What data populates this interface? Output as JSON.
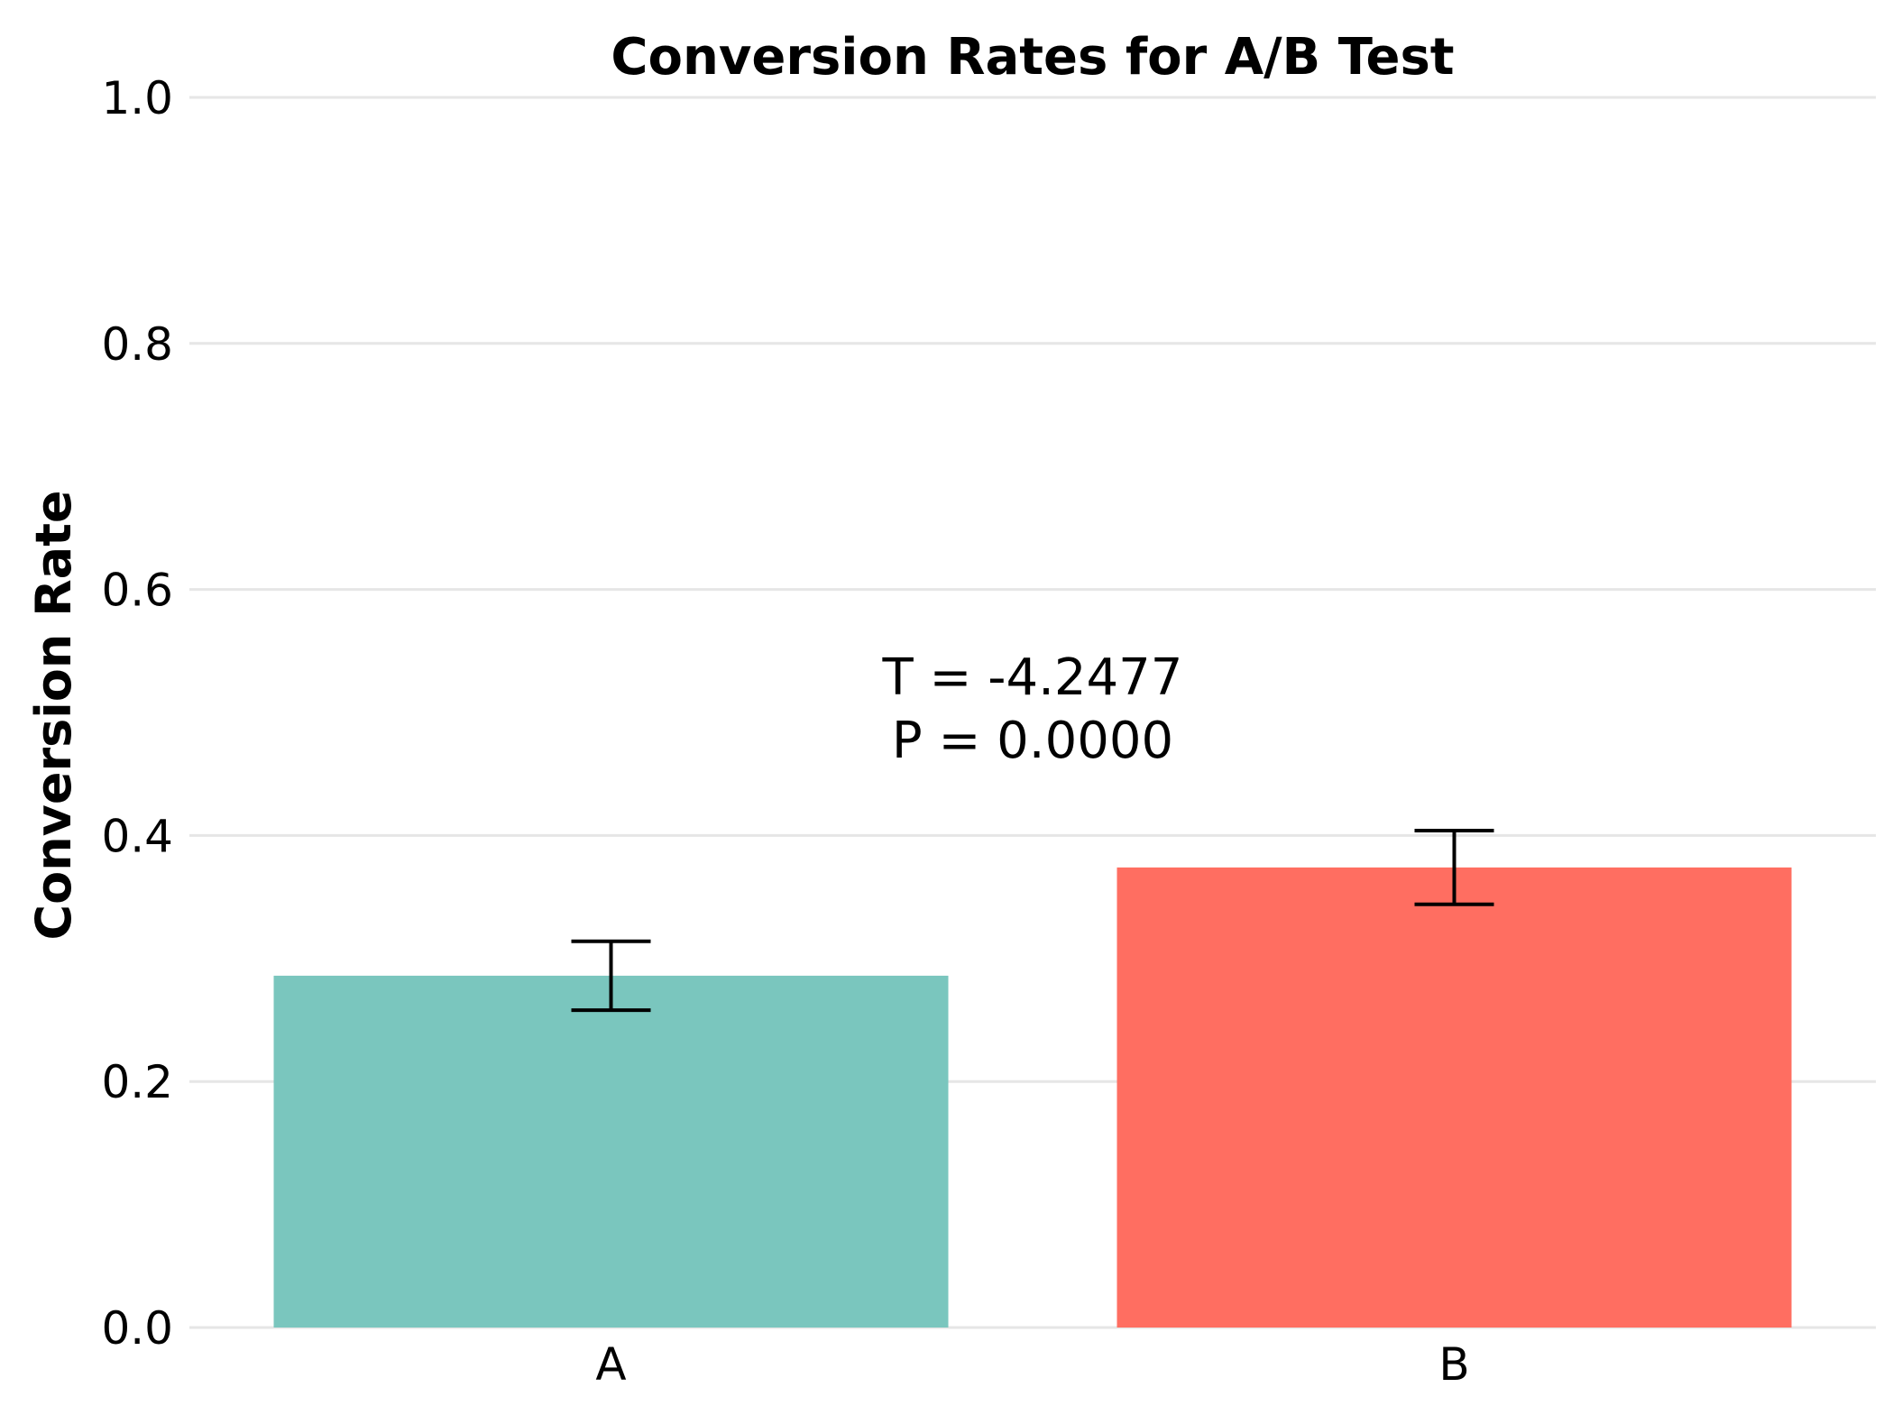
{
  "chart_data": {
    "type": "bar",
    "title": "Conversion Rates for A/B Test",
    "xlabel": "",
    "ylabel": "Conversion Rate",
    "ylim": [
      0,
      1.0
    ],
    "yticks": [
      "0.0",
      "0.2",
      "0.4",
      "0.6",
      "0.8",
      "1.0"
    ],
    "grid": true,
    "categories": [
      "A",
      "B"
    ],
    "values": [
      0.286,
      0.374
    ],
    "error": [
      0.028,
      0.03
    ],
    "colors": [
      "#7ac6be",
      "#ff6e61"
    ],
    "annotation": [
      "T = -4.2477",
      "P = 0.0000"
    ]
  }
}
